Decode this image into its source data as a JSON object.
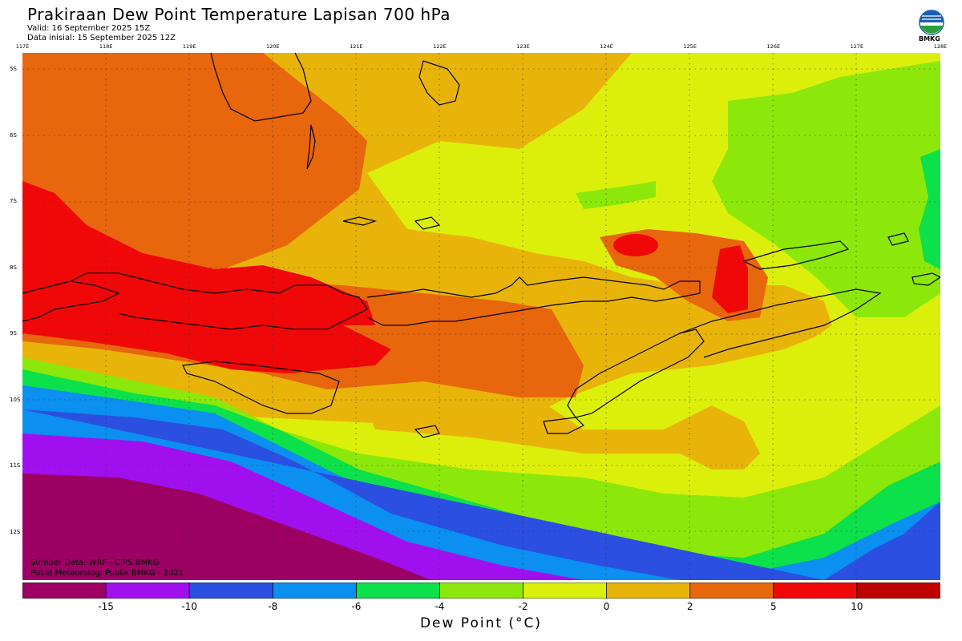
{
  "header": {
    "title": "Prakiraan Dew Point Temperature Lapisan 700 hPa",
    "valid": "Valid: 16 September 2025 15Z",
    "data_initial": "Data inisial: 15 September 2025 12Z"
  },
  "logo": {
    "icon": "bmkg-logo-icon",
    "text": "BMKG"
  },
  "axes": {
    "lon_labels": [
      "117E",
      "118E",
      "119E",
      "120E",
      "121E",
      "122E",
      "123E",
      "124E",
      "125E",
      "126E",
      "127E",
      "128E"
    ],
    "lat_labels": [
      "5S",
      "6S",
      "7S",
      "8S",
      "9S",
      "10S",
      "11S",
      "12S"
    ]
  },
  "credits": {
    "source": "Sumber Data: WRF - CIPS BMKG",
    "center": "Pusat Meteorologi Publik BMKG - 2021"
  },
  "colorbar": {
    "label": "Dew Point (°C)",
    "ticks": [
      "-15",
      "-10",
      "-8",
      "-6",
      "-4",
      "-2",
      "0",
      "2",
      "5",
      "10"
    ],
    "colors": [
      "#9c0063",
      "#a010ef",
      "#2b4fe0",
      "#0b8ff0",
      "#0ce04a",
      "#8ce80a",
      "#dcef0a",
      "#e8b40a",
      "#e8660c",
      "#f00808",
      "#bd0000"
    ]
  },
  "map_colors": {
    "purple_dark": "#9c0063",
    "purple": "#a010ef",
    "blue": "#2b4fe0",
    "light_blue": "#0b8ff0",
    "green": "#0ce04a",
    "lime": "#8ce80a",
    "yellow": "#dcef0a",
    "amber": "#e8b40a",
    "orange": "#e8660c",
    "red": "#f00808"
  }
}
